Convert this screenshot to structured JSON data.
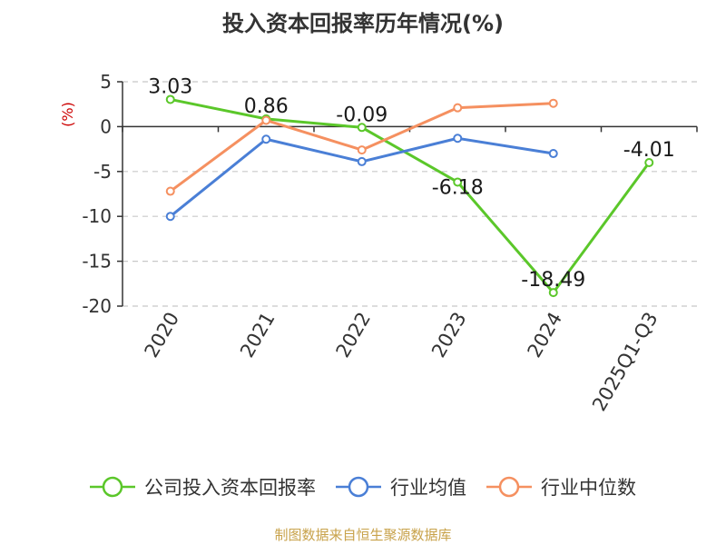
{
  "chart_data": {
    "type": "line",
    "title": "投入资本回报率历年情况(%)",
    "ylabel": "(%)",
    "xlabel": "",
    "categories": [
      "2020",
      "2021",
      "2022",
      "2023",
      "2024",
      "2025Q1-Q3"
    ],
    "ylim": [
      -20,
      5
    ],
    "yticks": [
      5,
      0,
      -5,
      -10,
      -15,
      -20
    ],
    "grid": true,
    "legend_position": "bottom",
    "series": [
      {
        "name": "公司投入资本回报率",
        "color": "#5bc72a",
        "values": [
          3.03,
          0.86,
          -0.09,
          -6.18,
          -18.49,
          -4.01
        ],
        "labels": [
          "3.03",
          "0.86",
          "-0.09",
          "-6.18",
          "-18.49",
          "-4.01"
        ]
      },
      {
        "name": "行业均值",
        "color": "#4a7fd6",
        "values": [
          -10.0,
          -1.4,
          -3.9,
          -1.3,
          -3.0,
          null
        ]
      },
      {
        "name": "行业中位数",
        "color": "#f59060",
        "values": [
          -7.2,
          0.7,
          -2.6,
          2.1,
          2.6,
          null
        ]
      }
    ]
  },
  "source_note": "制图数据来自恒生聚源数据库"
}
